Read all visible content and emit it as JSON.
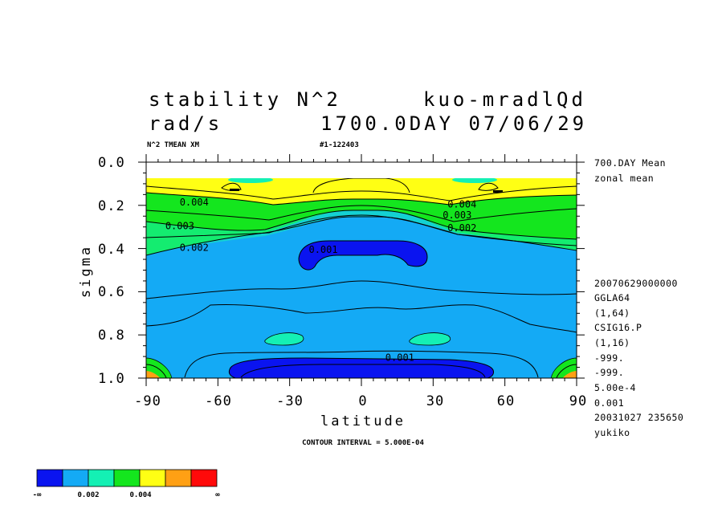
{
  "header": {
    "title_left": "stability N^2",
    "title_right": "kuo-mradlQd",
    "units": "rad/s",
    "date": "1700.0DAY 07/06/29",
    "sub_left": "N^2 TMEAN XM",
    "sub_right": "#1-122403"
  },
  "side_info": {
    "mean": "700.DAY Mean",
    "zonal": "zonal mean",
    "lines": [
      "20070629000000",
      "GGLA64",
      "(1,64)",
      "CSIG16.P",
      "(1,16)",
      "-999.",
      "-999.",
      "5.00e-4",
      "0.001",
      "20031027 235650",
      "yukiko"
    ]
  },
  "footer": {
    "contour_interval": "CONTOUR INTERVAL = 5.000E-04"
  },
  "colorbar": {
    "colors": [
      "#0a14f0",
      "#14aaf5",
      "#14f0b4",
      "#14e61e",
      "#ffff14",
      "#ffa014",
      "#ff0a0a"
    ],
    "labels": [
      "-∞",
      "0.002",
      "0.004",
      "∞"
    ]
  },
  "chart_data": {
    "type": "contour",
    "variable": "stability N^2",
    "units": "rad/s",
    "xlabel": "latitude",
    "ylabel": "sigma",
    "xlim": [
      -90,
      90
    ],
    "ylim": [
      0.0,
      1.0
    ],
    "y_reversed": true,
    "x_ticks": [
      "-90",
      "-60",
      "-30",
      "0",
      "30",
      "60",
      "90"
    ],
    "y_ticks": [
      "0.0",
      "0.2",
      "0.4",
      "0.6",
      "0.8",
      "1.0"
    ],
    "contour_interval": 0.0005,
    "shading_levels": [
      0.001,
      0.002,
      0.003,
      0.004,
      0.005,
      0.006
    ],
    "contour_labels": [
      {
        "text": "0.004",
        "lat": -76,
        "sigma": 0.2
      },
      {
        "text": "0.003",
        "lat": -82,
        "sigma": 0.31
      },
      {
        "text": "0.002",
        "lat": -76,
        "sigma": 0.41
      },
      {
        "text": "0.001",
        "lat": -22,
        "sigma": 0.42
      },
      {
        "text": "0.004",
        "lat": 36,
        "sigma": 0.21
      },
      {
        "text": "0.003",
        "lat": 34,
        "sigma": 0.26
      },
      {
        "text": "0.002",
        "lat": 36,
        "sigma": 0.32
      },
      {
        "text": "0.001",
        "lat": 10,
        "sigma": 0.92
      }
    ]
  }
}
